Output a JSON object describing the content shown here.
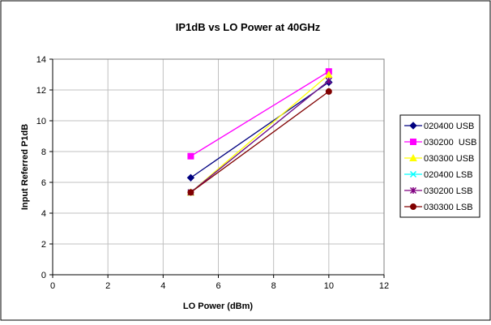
{
  "chart_data": {
    "type": "line",
    "title": "IP1dB vs LO Power at 40GHz",
    "xlabel": "LO Power (dBm)",
    "ylabel": "Input Referred P1dB",
    "xlim": [
      0,
      12
    ],
    "ylim": [
      0,
      14
    ],
    "xticks": [
      0,
      2,
      4,
      6,
      8,
      10,
      12
    ],
    "yticks": [
      0,
      2,
      4,
      6,
      8,
      10,
      12,
      14
    ],
    "grid": true,
    "legend_position": "right",
    "series": [
      {
        "name": "020400 USB",
        "color": "#000080",
        "marker": "diamond",
        "x": [
          5,
          10
        ],
        "y": [
          6.3,
          12.5
        ]
      },
      {
        "name": "030200  USB",
        "color": "#FF00FF",
        "marker": "square",
        "x": [
          5,
          10
        ],
        "y": [
          7.7,
          13.2
        ]
      },
      {
        "name": "030300 USB",
        "color": "#FFFF00",
        "marker": "triangle",
        "x": [
          5,
          10
        ],
        "y": [
          5.35,
          13.0
        ]
      },
      {
        "name": "020400 LSB",
        "color": "#00FFFF",
        "marker": "x",
        "x": [
          5,
          10
        ],
        "y": [
          5.35,
          12.6
        ]
      },
      {
        "name": "030200 LSB",
        "color": "#800080",
        "marker": "star",
        "x": [
          5,
          10
        ],
        "y": [
          5.35,
          12.6
        ]
      },
      {
        "name": "030300 LSB",
        "color": "#800000",
        "marker": "circle",
        "x": [
          5,
          10
        ],
        "y": [
          5.35,
          11.9
        ]
      }
    ]
  }
}
